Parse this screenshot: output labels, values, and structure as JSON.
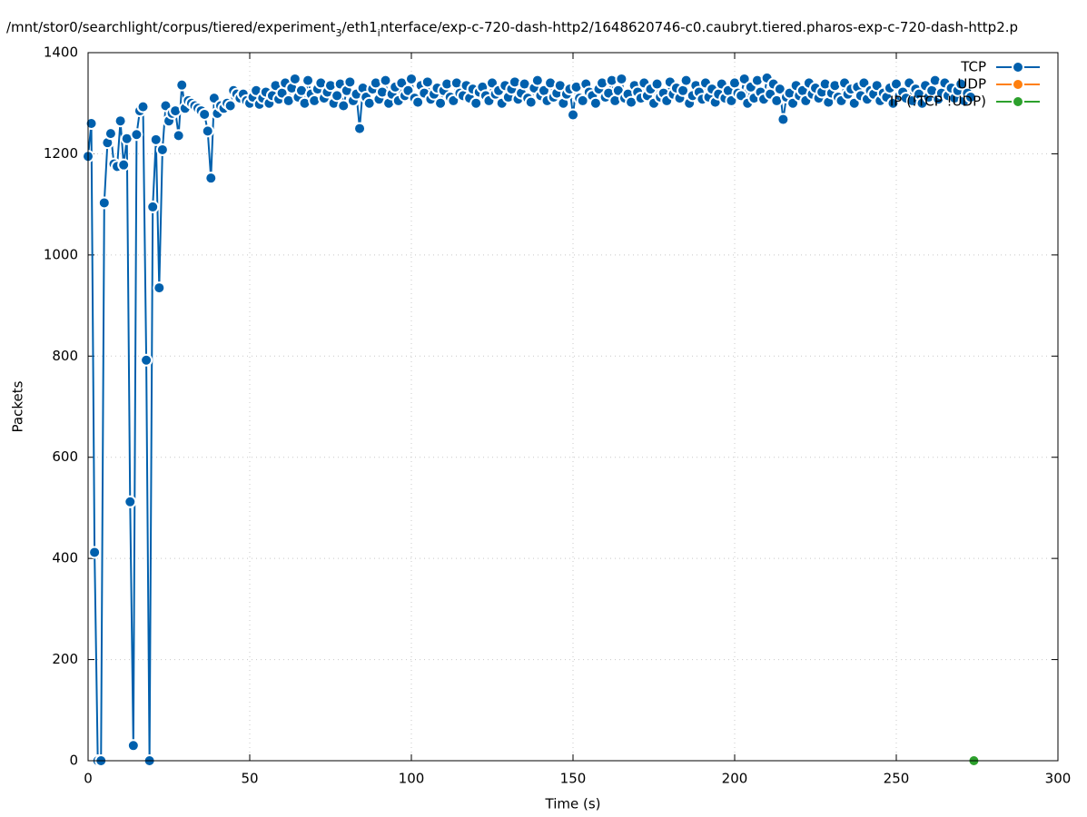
{
  "chart_data": {
    "type": "line",
    "title": [
      "/mnt/stor0/searchlight/corpus/tiered/experiment",
      "3",
      "/eth1",
      "i",
      "nterface/exp-c-720-dash-http2/1648620746-c0.caubryt.tiered.pharos-exp-c-720-dash-http2.p"
    ],
    "xlabel": "Time (s)",
    "ylabel": "Packets",
    "xlim": [
      0,
      300
    ],
    "xticks": [
      0,
      50,
      100,
      150,
      200,
      250,
      300
    ],
    "ylim": [
      0,
      1400
    ],
    "yticks": [
      0,
      200,
      400,
      600,
      800,
      1000,
      1200,
      1400
    ],
    "grid": true,
    "legend": "top-right",
    "series": [
      {
        "name": "TCP",
        "color": "#0060ad",
        "x": [
          0,
          1,
          2,
          3,
          4,
          5,
          6,
          7,
          8,
          9,
          10,
          11,
          12,
          13,
          14,
          15,
          16,
          17,
          18,
          19,
          20,
          21,
          22,
          23,
          24,
          25,
          26,
          27,
          28,
          29,
          30,
          31,
          32,
          33,
          34,
          35,
          36,
          37,
          38,
          39,
          40,
          41,
          42,
          43,
          44,
          45,
          46,
          47,
          48,
          49,
          50,
          51,
          52,
          53,
          54,
          55,
          56,
          57,
          58,
          59,
          60,
          61,
          62,
          63,
          64,
          65,
          66,
          67,
          68,
          69,
          70,
          71,
          72,
          73,
          74,
          75,
          76,
          77,
          78,
          79,
          80,
          81,
          82,
          83,
          84,
          85,
          86,
          87,
          88,
          89,
          90,
          91,
          92,
          93,
          94,
          95,
          96,
          97,
          98,
          99,
          100,
          101,
          102,
          103,
          104,
          105,
          106,
          107,
          108,
          109,
          110,
          111,
          112,
          113,
          114,
          115,
          116,
          117,
          118,
          119,
          120,
          121,
          122,
          123,
          124,
          125,
          126,
          127,
          128,
          129,
          130,
          131,
          132,
          133,
          134,
          135,
          136,
          137,
          138,
          139,
          140,
          141,
          142,
          143,
          144,
          145,
          146,
          147,
          148,
          149,
          150,
          151,
          152,
          153,
          154,
          155,
          156,
          157,
          158,
          159,
          160,
          161,
          162,
          163,
          164,
          165,
          166,
          167,
          168,
          169,
          170,
          171,
          172,
          173,
          174,
          175,
          176,
          177,
          178,
          179,
          180,
          181,
          182,
          183,
          184,
          185,
          186,
          187,
          188,
          189,
          190,
          191,
          192,
          193,
          194,
          195,
          196,
          197,
          198,
          199,
          200,
          201,
          202,
          203,
          204,
          205,
          206,
          207,
          208,
          209,
          210,
          211,
          212,
          213,
          214,
          215,
          216,
          217,
          218,
          219,
          220,
          221,
          222,
          223,
          224,
          225,
          226,
          227,
          228,
          229,
          230,
          231,
          232,
          233,
          234,
          235,
          236,
          237,
          238,
          239,
          240,
          241,
          242,
          243,
          244,
          245,
          246,
          247,
          248,
          249,
          250,
          251,
          252,
          253,
          254,
          255,
          256,
          257,
          258,
          259,
          260,
          261,
          262,
          263,
          264,
          265,
          266,
          267,
          268,
          269,
          270,
          271,
          272,
          273
        ],
        "values": [
          1195,
          1260,
          412,
          0,
          0,
          1103,
          1222,
          1240,
          1180,
          1175,
          1265,
          1178,
          1230,
          512,
          30,
          1238,
          1285,
          1293,
          792,
          0,
          1095,
          1228,
          935,
          1208,
          1295,
          1265,
          1280,
          1285,
          1236,
          1336,
          1290,
          1305,
          1300,
          1295,
          1290,
          1285,
          1278,
          1245,
          1152,
          1310,
          1280,
          1295,
          1290,
          1300,
          1295,
          1325,
          1318,
          1310,
          1318,
          1305,
          1300,
          1312,
          1325,
          1298,
          1310,
          1322,
          1300,
          1315,
          1335,
          1308,
          1320,
          1340,
          1305,
          1330,
          1348,
          1312,
          1325,
          1300,
          1345,
          1318,
          1305,
          1328,
          1340,
          1310,
          1322,
          1335,
          1300,
          1315,
          1338,
          1295,
          1325,
          1342,
          1305,
          1318,
          1250,
          1330,
          1312,
          1300,
          1328,
          1340,
          1308,
          1322,
          1345,
          1300,
          1318,
          1332,
          1305,
          1340,
          1315,
          1325,
          1348,
          1310,
          1302,
          1335,
          1320,
          1342,
          1308,
          1318,
          1330,
          1300,
          1325,
          1338,
          1312,
          1305,
          1340,
          1320,
          1315,
          1335,
          1310,
          1328,
          1300,
          1322,
          1332,
          1315,
          1305,
          1340,
          1318,
          1325,
          1300,
          1335,
          1312,
          1328,
          1342,
          1308,
          1320,
          1338,
          1310,
          1302,
          1330,
          1345,
          1315,
          1325,
          1305,
          1340,
          1312,
          1320,
          1335,
          1300,
          1318,
          1328,
          1277,
          1332,
          1310,
          1305,
          1338,
          1322,
          1315,
          1300,
          1328,
          1340,
          1312,
          1320,
          1345,
          1305,
          1325,
          1348,
          1310,
          1318,
          1302,
          1335,
          1322,
          1310,
          1340,
          1315,
          1328,
          1300,
          1338,
          1312,
          1320,
          1305,
          1342,
          1318,
          1330,
          1310,
          1325,
          1345,
          1300,
          1315,
          1335,
          1322,
          1308,
          1340,
          1312,
          1328,
          1302,
          1318,
          1338,
          1310,
          1325,
          1305,
          1340,
          1320,
          1315,
          1348,
          1300,
          1332,
          1310,
          1345,
          1322,
          1308,
          1350,
          1318,
          1338,
          1305,
          1328,
          1268,
          1312,
          1320,
          1300,
          1335,
          1315,
          1325,
          1305,
          1340,
          1318,
          1330,
          1310,
          1322,
          1338,
          1302,
          1320,
          1335,
          1312,
          1305,
          1340,
          1318,
          1328,
          1300,
          1332,
          1315,
          1340,
          1308,
          1325,
          1318,
          1335,
          1305,
          1320,
          1312,
          1330,
          1300,
          1338,
          1315,
          1322,
          1310,
          1340,
          1305,
          1328,
          1318,
          1300,
          1335,
          1312,
          1325,
          1345,
          1308,
          1320,
          1340,
          1315,
          1330,
          1310,
          1325,
          1338,
          1305,
          1320,
          1312
        ]
      },
      {
        "name": "UDP",
        "color": "#ff7f0e",
        "x": [],
        "values": []
      },
      {
        "name": "IP (!TCP !UDP)",
        "color": "#2ca02c",
        "x": [
          274
        ],
        "values": [
          0
        ]
      }
    ]
  }
}
